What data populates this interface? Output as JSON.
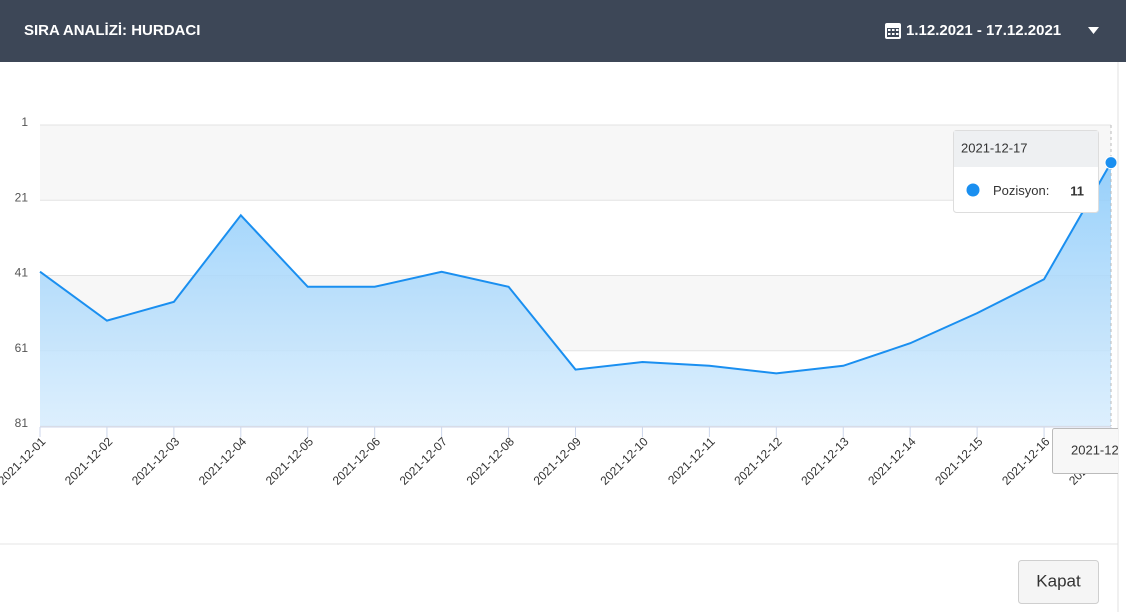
{
  "header": {
    "title": "SIRA ANALİZİ: HURDACI",
    "date_range": "1.12.2021 - 17.12.2021"
  },
  "chart_data": {
    "type": "line",
    "categories": [
      "2021-12-01",
      "2021-12-02",
      "2021-12-03",
      "2021-12-04",
      "2021-12-05",
      "2021-12-06",
      "2021-12-07",
      "2021-12-08",
      "2021-12-09",
      "2021-12-10",
      "2021-12-11",
      "2021-12-12",
      "2021-12-13",
      "2021-12-14",
      "2021-12-15",
      "2021-12-16",
      "2021-12-17"
    ],
    "series": [
      {
        "name": "Pozisyon",
        "color": "#1a8ff0",
        "values": [
          40,
          53,
          48,
          25,
          44,
          44,
          40,
          44,
          66,
          64,
          65,
          67,
          65,
          59,
          51,
          42,
          11
        ]
      }
    ],
    "ylim": [
      81,
      1
    ],
    "yticks": [
      1,
      21,
      41,
      61,
      81
    ],
    "grid": true,
    "band_color": "#f7f7f7",
    "tooltip": {
      "index": 16,
      "separator": ":"
    }
  },
  "footer": {
    "button": "Kapat"
  }
}
